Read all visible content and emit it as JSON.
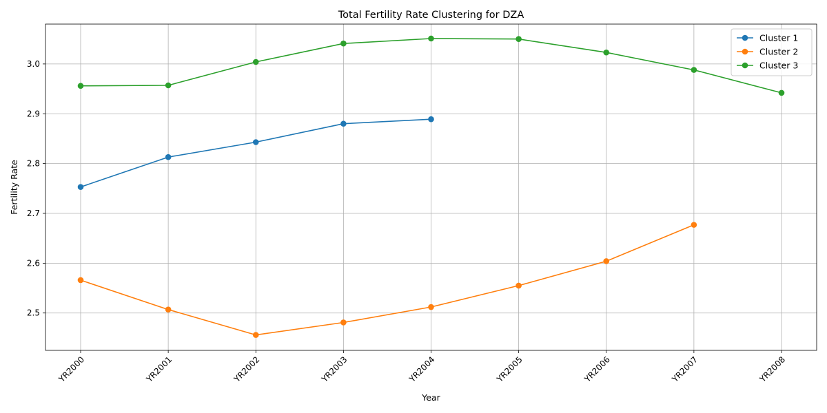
{
  "chart_data": {
    "type": "line",
    "title": "Total Fertility Rate Clustering for DZA",
    "xlabel": "Year",
    "ylabel": "Fertility Rate",
    "categories": [
      "YR2000",
      "YR2001",
      "YR2002",
      "YR2003",
      "YR2004",
      "YR2005",
      "YR2006",
      "YR2007",
      "YR2008"
    ],
    "ylim": [
      2.425,
      3.08
    ],
    "yticks": [
      2.5,
      2.6,
      2.7,
      2.8,
      2.9,
      3.0
    ],
    "ytick_labels": [
      "2.5",
      "2.6",
      "2.7",
      "2.8",
      "2.9",
      "3.0"
    ],
    "grid": true,
    "legend_position": "top-right",
    "series": [
      {
        "name": "Cluster 1",
        "color": "#1f77b4",
        "values": [
          2.753,
          2.813,
          2.843,
          2.88,
          2.889,
          null,
          null,
          null,
          null
        ]
      },
      {
        "name": "Cluster 2",
        "color": "#ff7f0e",
        "values": [
          2.566,
          2.507,
          2.456,
          2.481,
          2.512,
          2.555,
          2.604,
          2.677,
          null
        ]
      },
      {
        "name": "Cluster 3",
        "color": "#2ca02c",
        "values": [
          2.956,
          2.957,
          3.004,
          3.041,
          3.051,
          3.05,
          3.023,
          2.988,
          2.942
        ]
      }
    ]
  }
}
